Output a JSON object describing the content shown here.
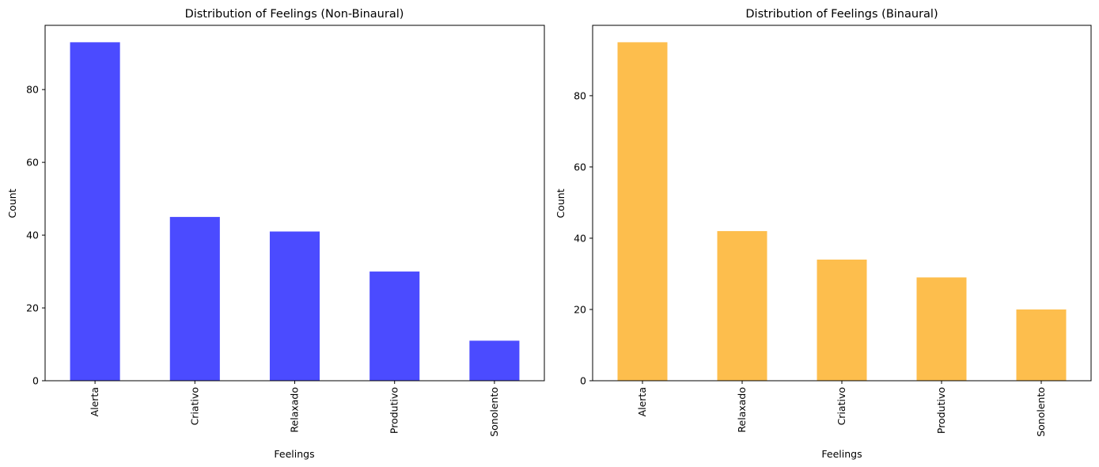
{
  "chart_data": [
    {
      "type": "bar",
      "title": "Distribution of Feelings (Non-Binaural)",
      "xlabel": "Feelings",
      "ylabel": "Count",
      "categories": [
        "Alerta",
        "Criativo",
        "Relaxado",
        "Produtivo",
        "Sonolento"
      ],
      "values": [
        93,
        45,
        41,
        30,
        11
      ],
      "ylim": [
        0,
        97.65
      ],
      "yticks": [
        0,
        20,
        40,
        60,
        80
      ],
      "color": "#4b4bff",
      "grid": false,
      "legend": "none"
    },
    {
      "type": "bar",
      "title": "Distribution of Feelings (Binaural)",
      "xlabel": "Feelings",
      "ylabel": "Count",
      "categories": [
        "Alerta",
        "Relaxado",
        "Criativo",
        "Produtivo",
        "Sonolento"
      ],
      "values": [
        95,
        42,
        34,
        29,
        20
      ],
      "ylim": [
        0,
        99.75
      ],
      "yticks": [
        0,
        20,
        40,
        60,
        80
      ],
      "color": "#fdbe4d",
      "grid": false,
      "legend": "none"
    }
  ]
}
